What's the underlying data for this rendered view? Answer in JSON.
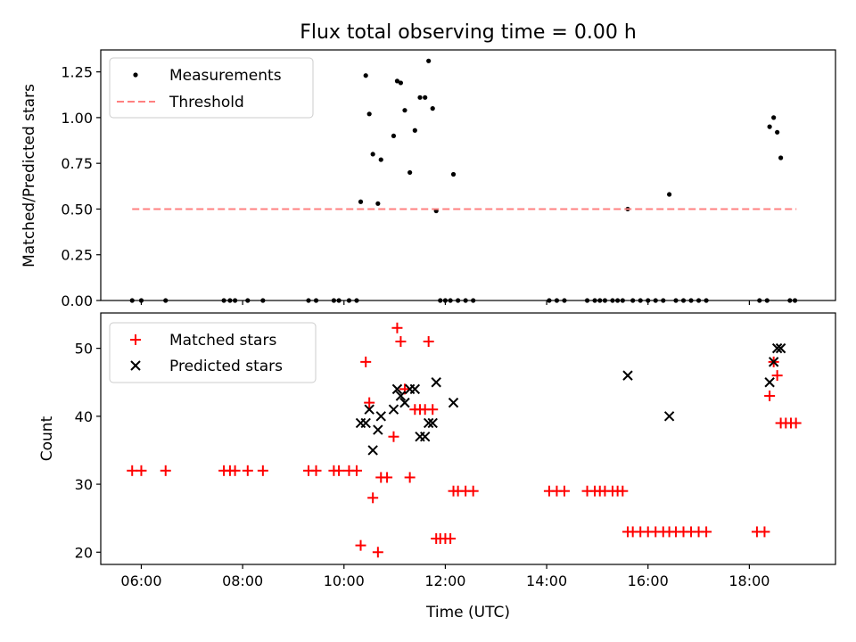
{
  "chart_data": [
    {
      "type": "scatter",
      "title": "Flux total observing time = 0.00 h",
      "xlabel": "",
      "ylabel": "Matched/Predicted stars",
      "xlim": [
        5.2,
        19.7
      ],
      "ylim": [
        0,
        1.37
      ],
      "yticks": [
        0.0,
        0.25,
        0.5,
        0.75,
        1.0,
        1.25
      ],
      "ytick_labels": [
        "0.00",
        "0.25",
        "0.50",
        "0.75",
        "1.00",
        "1.25"
      ],
      "legend": {
        "location": "upper left"
      },
      "series": [
        {
          "name": "Measurements",
          "kind": "scatter",
          "color": "#000000",
          "marker": "dot",
          "points": [
            [
              5.82,
              0
            ],
            [
              6.0,
              0
            ],
            [
              6.48,
              0
            ],
            [
              7.63,
              0
            ],
            [
              7.75,
              0
            ],
            [
              7.85,
              0
            ],
            [
              8.1,
              0
            ],
            [
              8.4,
              0
            ],
            [
              9.3,
              0
            ],
            [
              9.45,
              0
            ],
            [
              9.8,
              0
            ],
            [
              9.9,
              0
            ],
            [
              10.1,
              0
            ],
            [
              10.25,
              0
            ],
            [
              10.33,
              0.54
            ],
            [
              10.43,
              1.23
            ],
            [
              10.5,
              1.02
            ],
            [
              10.57,
              0.8
            ],
            [
              10.67,
              0.53
            ],
            [
              10.73,
              0.77
            ],
            [
              10.98,
              0.9
            ],
            [
              11.05,
              1.2
            ],
            [
              11.12,
              1.19
            ],
            [
              11.2,
              1.04
            ],
            [
              11.3,
              0.7
            ],
            [
              11.4,
              0.93
            ],
            [
              11.5,
              1.11
            ],
            [
              11.6,
              1.11
            ],
            [
              11.67,
              1.31
            ],
            [
              11.75,
              1.05
            ],
            [
              11.82,
              0.49
            ],
            [
              11.9,
              0
            ],
            [
              12.0,
              0
            ],
            [
              12.1,
              0
            ],
            [
              12.16,
              0.69
            ],
            [
              12.25,
              0
            ],
            [
              12.4,
              0
            ],
            [
              12.55,
              0
            ],
            [
              14.05,
              0
            ],
            [
              14.2,
              0
            ],
            [
              14.35,
              0
            ],
            [
              14.8,
              0
            ],
            [
              14.95,
              0
            ],
            [
              15.05,
              0
            ],
            [
              15.15,
              0
            ],
            [
              15.3,
              0
            ],
            [
              15.4,
              0
            ],
            [
              15.5,
              0
            ],
            [
              15.6,
              0.5
            ],
            [
              15.7,
              0
            ],
            [
              15.85,
              0
            ],
            [
              16.0,
              0
            ],
            [
              16.15,
              0
            ],
            [
              16.3,
              0
            ],
            [
              16.42,
              0.58
            ],
            [
              16.55,
              0
            ],
            [
              16.7,
              0
            ],
            [
              16.85,
              0
            ],
            [
              17.0,
              0
            ],
            [
              17.15,
              0
            ],
            [
              18.2,
              0
            ],
            [
              18.35,
              0
            ],
            [
              18.4,
              0.95
            ],
            [
              18.48,
              1.0
            ],
            [
              18.55,
              0.92
            ],
            [
              18.62,
              0.78
            ],
            [
              18.8,
              0
            ],
            [
              18.9,
              0
            ]
          ]
        },
        {
          "name": "Threshold",
          "kind": "line",
          "color": "#ff8080",
          "style": "dashed",
          "points": [
            [
              5.82,
              0.5
            ],
            [
              18.93,
              0.5
            ]
          ]
        }
      ]
    },
    {
      "type": "scatter",
      "title": "",
      "xlabel": "Time (UTC)",
      "ylabel": "Count",
      "xlim": [
        5.2,
        19.7
      ],
      "ylim": [
        18.2,
        55.2
      ],
      "xticks": [
        6,
        8,
        10,
        12,
        14,
        16,
        18
      ],
      "xtick_labels": [
        "06:00",
        "08:00",
        "10:00",
        "12:00",
        "14:00",
        "16:00",
        "18:00"
      ],
      "yticks": [
        20,
        30,
        40,
        50
      ],
      "ytick_labels": [
        "20",
        "30",
        "40",
        "50"
      ],
      "legend": {
        "location": "upper left"
      },
      "series": [
        {
          "name": "Matched stars",
          "kind": "scatter",
          "color": "#ff0000",
          "marker": "plus",
          "points": [
            [
              5.82,
              32
            ],
            [
              6.0,
              32
            ],
            [
              6.48,
              32
            ],
            [
              7.63,
              32
            ],
            [
              7.75,
              32
            ],
            [
              7.85,
              32
            ],
            [
              8.1,
              32
            ],
            [
              8.4,
              32
            ],
            [
              9.3,
              32
            ],
            [
              9.45,
              32
            ],
            [
              9.8,
              32
            ],
            [
              9.9,
              32
            ],
            [
              10.1,
              32
            ],
            [
              10.25,
              32
            ],
            [
              10.33,
              21
            ],
            [
              10.43,
              48
            ],
            [
              10.5,
              42
            ],
            [
              10.57,
              28
            ],
            [
              10.67,
              20
            ],
            [
              10.73,
              31
            ],
            [
              10.85,
              31
            ],
            [
              10.98,
              37
            ],
            [
              11.05,
              53
            ],
            [
              11.12,
              51
            ],
            [
              11.2,
              44
            ],
            [
              11.3,
              31
            ],
            [
              11.4,
              41
            ],
            [
              11.5,
              41
            ],
            [
              11.6,
              41
            ],
            [
              11.67,
              51
            ],
            [
              11.75,
              41
            ],
            [
              11.82,
              22
            ],
            [
              11.9,
              22
            ],
            [
              12.0,
              22
            ],
            [
              12.1,
              22
            ],
            [
              12.16,
              29
            ],
            [
              12.25,
              29
            ],
            [
              12.4,
              29
            ],
            [
              12.55,
              29
            ],
            [
              14.05,
              29
            ],
            [
              14.2,
              29
            ],
            [
              14.35,
              29
            ],
            [
              14.8,
              29
            ],
            [
              14.95,
              29
            ],
            [
              15.05,
              29
            ],
            [
              15.15,
              29
            ],
            [
              15.3,
              29
            ],
            [
              15.4,
              29
            ],
            [
              15.5,
              29
            ],
            [
              15.6,
              23
            ],
            [
              15.7,
              23
            ],
            [
              15.85,
              23
            ],
            [
              16.0,
              23
            ],
            [
              16.15,
              23
            ],
            [
              16.3,
              23
            ],
            [
              16.42,
              23
            ],
            [
              16.55,
              23
            ],
            [
              16.7,
              23
            ],
            [
              16.85,
              23
            ],
            [
              17.0,
              23
            ],
            [
              17.15,
              23
            ],
            [
              18.15,
              23
            ],
            [
              18.3,
              23
            ],
            [
              18.4,
              43
            ],
            [
              18.48,
              48
            ],
            [
              18.55,
              46
            ],
            [
              18.62,
              39
            ],
            [
              18.72,
              39
            ],
            [
              18.82,
              39
            ],
            [
              18.92,
              39
            ]
          ]
        },
        {
          "name": "Predicted stars",
          "kind": "scatter",
          "color": "#000000",
          "marker": "x",
          "points": [
            [
              10.33,
              39
            ],
            [
              10.43,
              39
            ],
            [
              10.5,
              41
            ],
            [
              10.57,
              35
            ],
            [
              10.67,
              38
            ],
            [
              10.73,
              40
            ],
            [
              10.98,
              41
            ],
            [
              11.05,
              44
            ],
            [
              11.12,
              43
            ],
            [
              11.2,
              42
            ],
            [
              11.3,
              44
            ],
            [
              11.4,
              44
            ],
            [
              11.5,
              37
            ],
            [
              11.6,
              37
            ],
            [
              11.67,
              39
            ],
            [
              11.75,
              39
            ],
            [
              11.82,
              45
            ],
            [
              12.16,
              42
            ],
            [
              15.6,
              46
            ],
            [
              16.42,
              40
            ],
            [
              18.4,
              45
            ],
            [
              18.48,
              48
            ],
            [
              18.55,
              50
            ],
            [
              18.62,
              50
            ]
          ]
        }
      ]
    }
  ]
}
